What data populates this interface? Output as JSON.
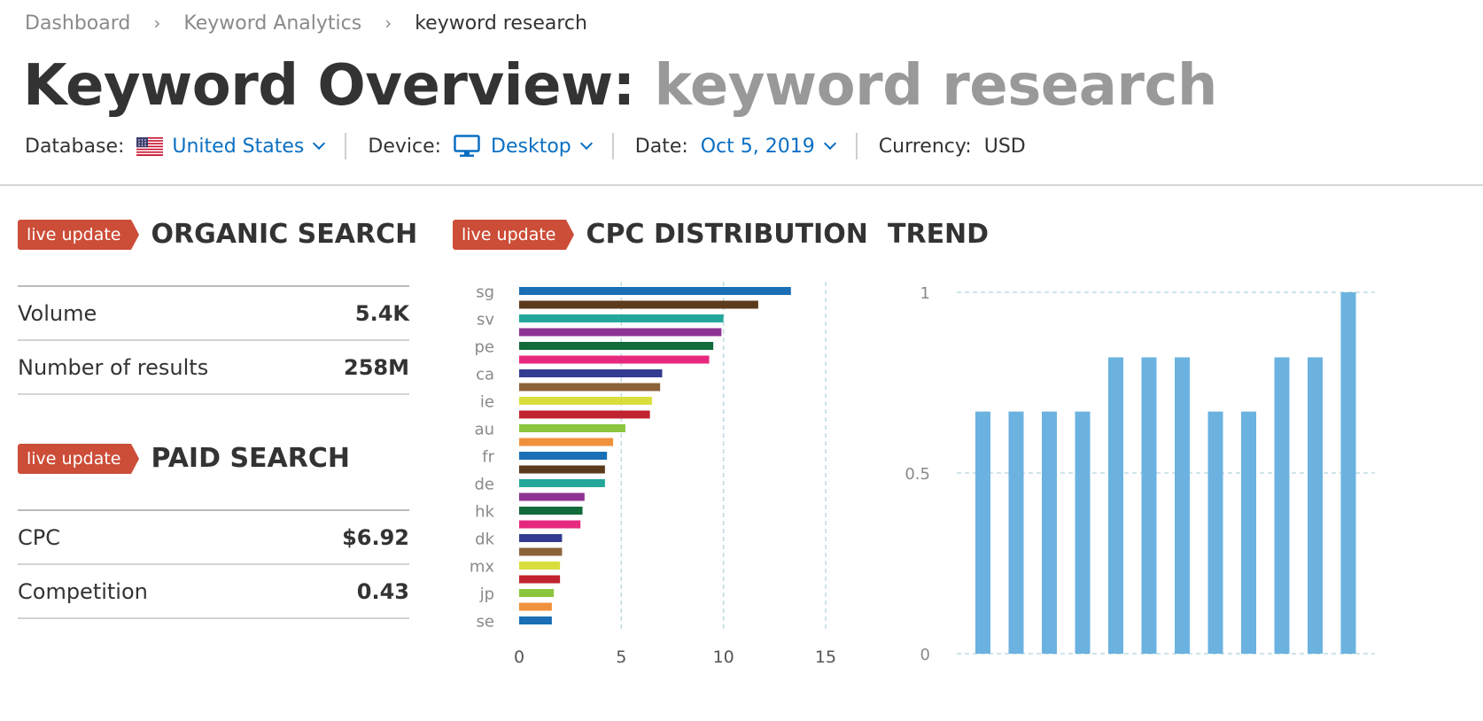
{
  "breadcrumb": {
    "item1": "Dashboard",
    "item2": "Keyword Analytics",
    "current": "keyword research"
  },
  "title": {
    "prefix": "Keyword Overview:",
    "keyword": "keyword research"
  },
  "filters": {
    "database_label": "Database:",
    "database_value": "United States",
    "device_label": "Device:",
    "device_value": "Desktop",
    "date_label": "Date:",
    "date_value": "Oct 5, 2019",
    "currency_label": "Currency:",
    "currency_value": "USD"
  },
  "organic": {
    "badge": "live update",
    "title": "ORGANIC SEARCH",
    "rows": [
      {
        "label": "Volume",
        "value": "5.4K"
      },
      {
        "label": "Number of results",
        "value": "258M"
      }
    ]
  },
  "paid": {
    "badge": "live update",
    "title": "PAID SEARCH",
    "rows": [
      {
        "label": "CPC",
        "value": "$6.92"
      },
      {
        "label": "Competition",
        "value": "0.43"
      }
    ]
  },
  "cpc": {
    "badge": "live update",
    "title": "CPC DISTRIBUTION"
  },
  "trend": {
    "title": "TREND"
  },
  "colors": {
    "accent": "#0a6fc2",
    "badge": "#cc4d38",
    "trend_bar": "#6bb2e0"
  },
  "chart_data": [
    {
      "type": "bar",
      "orientation": "horizontal",
      "title": "CPC DISTRIBUTION",
      "tick_labels": [
        "sg",
        "sv",
        "pe",
        "ca",
        "ie",
        "au",
        "fr",
        "de",
        "hk",
        "dk",
        "mx",
        "jp",
        "se"
      ],
      "values": [
        13.3,
        11.7,
        10.0,
        9.9,
        9.5,
        9.3,
        7.0,
        6.9,
        6.5,
        6.4,
        5.2,
        4.6,
        4.3,
        4.2,
        4.2,
        3.2,
        3.1,
        3.0,
        2.1,
        2.1,
        2.0,
        2.0,
        1.7,
        1.6,
        1.6
      ],
      "bar_colors": [
        "#1a6fb5",
        "#5c3a1c",
        "#23a79a",
        "#8e3393",
        "#116b3a",
        "#e6297f",
        "#333c92",
        "#8c6239",
        "#d9de3d",
        "#c0232e",
        "#8cc63f",
        "#f1913b"
      ],
      "x_ticks": [
        0,
        5,
        10,
        15
      ],
      "xlim": [
        0,
        15
      ],
      "grid": true
    },
    {
      "type": "bar",
      "title": "TREND",
      "values": [
        0.67,
        0.67,
        0.67,
        0.67,
        0.82,
        0.82,
        0.82,
        0.67,
        0.67,
        0.82,
        0.82,
        1.0
      ],
      "y_ticks": [
        0,
        0.5,
        1
      ],
      "y_tick_labels": [
        "0",
        "0.5",
        "1"
      ],
      "ylim": [
        0,
        1
      ],
      "grid": true
    }
  ]
}
